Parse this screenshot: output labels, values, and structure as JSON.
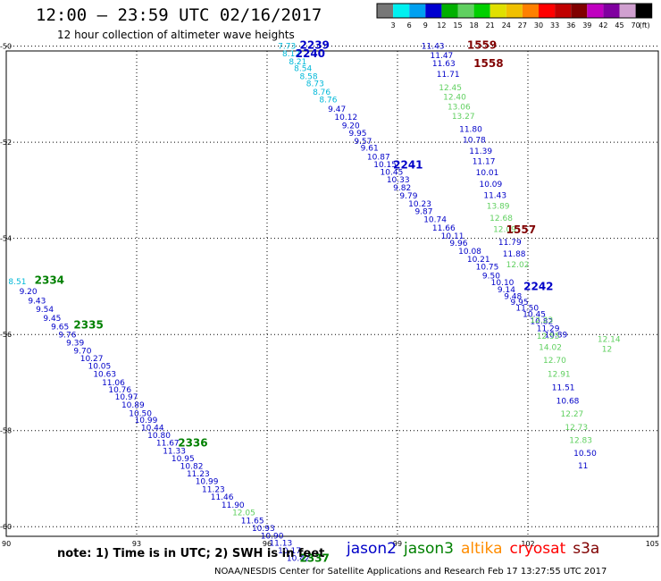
{
  "header": {
    "title": "12:00 – 23:59 UTC 02/16/2017",
    "subtitle": "12 hour collection of altimeter wave heights"
  },
  "colorbar": {
    "colors": [
      "#777777",
      "#00f0f0",
      "#00a0f0",
      "#0000d0",
      "#00b000",
      "#60d060",
      "#00d000",
      "#e0e000",
      "#f0c000",
      "#ff8000",
      "#ff0000",
      "#c00000",
      "#800000",
      "#c000c0",
      "#8000a0",
      "#d0a0d0",
      "#000000"
    ],
    "ticks": [
      "3",
      "6",
      "9",
      "12",
      "15",
      "18",
      "21",
      "24",
      "27",
      "30",
      "33",
      "36",
      "39",
      "42",
      "45",
      "70"
    ],
    "unit": "(ft)"
  },
  "footer": {
    "note": "note: 1) Time is in UTC; 2) SWH is in feet",
    "credit": "NOAA/NESDIS Center for Satellite Applications and Research   Feb 17 13:27:55 UTC 2017",
    "satellites": [
      {
        "name": "jason2",
        "color": "#0000c8"
      },
      {
        "name": "jason3",
        "color": "#008000"
      },
      {
        "name": "altika",
        "color": "#ff8c00"
      },
      {
        "name": "cryosat",
        "color": "#ff0000"
      },
      {
        "name": "s3a",
        "color": "#800000"
      }
    ]
  },
  "chart_data": {
    "type": "scatter",
    "title": "12:00 – 23:59 UTC 02/16/2017",
    "subtitle": "12 hour collection of altimeter wave heights",
    "x_ticks": [
      90,
      93,
      96,
      99,
      102,
      105
    ],
    "y_ticks": [
      -50,
      -52,
      -54,
      -56,
      -58,
      -60
    ],
    "xlim": [
      90,
      105
    ],
    "ylim": [
      -50.1,
      -60.2
    ],
    "grid": true,
    "value_unit": "ft",
    "series": [
      {
        "name": "2239",
        "color": "#0000c8",
        "label_color": "#0000c8",
        "label_pos": [
          96.75,
          -49.98
        ],
        "points": [
          [
            96.25,
            -50.0,
            7.73,
            "#00b8d8"
          ],
          [
            96.35,
            -50.16,
            8.12,
            "#00b8d8"
          ],
          [
            96.5,
            -50.32,
            8.21,
            "#00b8d8"
          ],
          [
            96.62,
            -50.46,
            8.54,
            "#00b8d8"
          ],
          [
            96.75,
            -50.63,
            8.58,
            "#00b8d8"
          ],
          [
            96.9,
            -50.78,
            8.73,
            "#00b8d8"
          ],
          [
            97.05,
            -50.96,
            8.76,
            "#00b8d8"
          ],
          [
            97.2,
            -51.11,
            8.76,
            "#00b8d8"
          ],
          [
            97.4,
            -51.31,
            9.47,
            "#0000c8"
          ],
          [
            97.55,
            -51.48,
            10.12,
            "#0000c8"
          ],
          [
            97.72,
            -51.65,
            9.2,
            "#0000c8"
          ],
          [
            97.88,
            -51.81,
            9.95,
            "#0000c8"
          ],
          [
            98.0,
            -51.98,
            9.57,
            "#0000c8"
          ],
          [
            98.15,
            -52.12,
            9.61,
            "#0000c8"
          ],
          [
            98.3,
            -52.3,
            10.87,
            "#0000c8"
          ],
          [
            98.45,
            -52.46,
            10.15,
            "#0000c8"
          ],
          [
            98.6,
            -52.62,
            10.45,
            "#0000c8"
          ],
          [
            98.75,
            -52.78,
            10.33,
            "#0000c8"
          ],
          [
            98.9,
            -52.95,
            9.82,
            "#0000c8"
          ],
          [
            99.05,
            -53.11,
            9.79,
            "#0000c8"
          ],
          [
            99.25,
            -53.28,
            10.23,
            "#0000c8"
          ],
          [
            99.4,
            -53.44,
            9.87,
            "#0000c8"
          ],
          [
            99.6,
            -53.61,
            10.74,
            "#0000c8"
          ],
          [
            99.8,
            -53.78,
            11.66,
            "#0000c8"
          ],
          [
            100.0,
            -53.95,
            10.11,
            "#0000c8"
          ],
          [
            100.2,
            -54.1,
            9.96,
            "#0000c8"
          ],
          [
            100.4,
            -54.27,
            10.08,
            "#0000c8"
          ],
          [
            100.6,
            -54.43,
            10.21,
            "#0000c8"
          ],
          [
            100.8,
            -54.59,
            10.75,
            "#0000c8"
          ],
          [
            100.95,
            -54.78,
            9.5,
            "#0000c8"
          ],
          [
            101.15,
            -54.92,
            10.1,
            "#0000c8"
          ],
          [
            101.3,
            -55.07,
            9.14,
            "#0000c8"
          ],
          [
            101.45,
            -55.21,
            9.48,
            "#0000c8"
          ],
          [
            101.6,
            -55.33,
            9.95,
            "#0000c8"
          ],
          [
            101.72,
            -55.45,
            11.5,
            "#0000c8"
          ],
          [
            101.88,
            -55.58,
            10.45,
            "#0000c8"
          ],
          [
            102.05,
            -55.73,
            10.82,
            "#0000c8"
          ],
          [
            102.2,
            -55.88,
            11.29,
            "#0000c8"
          ],
          [
            102.38,
            -56.01,
            10.89,
            "#0000c8"
          ]
        ]
      },
      {
        "name": "2240",
        "color": "#0000c8",
        "label_color": "#0000c8",
        "label_pos": [
          96.65,
          -50.16
        ],
        "points": []
      },
      {
        "name": "2241",
        "color": "#0000c8",
        "label_color": "#0000c8",
        "label_pos": [
          98.9,
          -52.47
        ],
        "points": []
      },
      {
        "name": "2242",
        "color": "#0000c8",
        "label_color": "#0000c8",
        "label_pos": [
          101.9,
          -55.0
        ],
        "points": []
      },
      {
        "name": "1559",
        "color": "#0000c8",
        "label_color": "#800000",
        "label_pos": [
          100.6,
          -49.98
        ],
        "points": [
          [
            99.55,
            -50.0,
            11.43,
            "#0000c8"
          ],
          [
            99.75,
            -50.19,
            11.47,
            "#0000c8"
          ],
          [
            99.8,
            -50.36,
            11.63,
            "#0000c8"
          ],
          [
            99.9,
            -50.58,
            11.71,
            "#0000c8"
          ],
          [
            99.95,
            -50.86,
            12.45,
            "#60d060"
          ],
          [
            100.05,
            -51.06,
            12.4,
            "#60d060"
          ],
          [
            100.15,
            -51.26,
            13.06,
            "#60d060"
          ],
          [
            100.25,
            -51.46,
            13.27,
            "#60d060"
          ],
          [
            100.42,
            -51.73,
            11.8,
            "#0000c8"
          ],
          [
            100.5,
            -51.95,
            10.78,
            "#0000c8"
          ],
          [
            100.65,
            -52.18,
            11.39,
            "#0000c8"
          ],
          [
            100.72,
            -52.4,
            11.17,
            "#0000c8"
          ],
          [
            100.8,
            -52.63,
            10.01,
            "#0000c8"
          ],
          [
            100.88,
            -52.87,
            10.09,
            "#0000c8"
          ],
          [
            100.98,
            -53.1,
            11.43,
            "#0000c8"
          ],
          [
            101.05,
            -53.33,
            13.89,
            "#60d060"
          ],
          [
            101.12,
            -53.58,
            12.68,
            "#60d060"
          ],
          [
            101.2,
            -53.81,
            12.09,
            "#60d060"
          ],
          [
            101.32,
            -54.08,
            11.79,
            "#0000c8"
          ],
          [
            101.42,
            -54.32,
            11.88,
            "#0000c8"
          ],
          [
            101.5,
            -54.55,
            12.02,
            "#60d060"
          ]
        ]
      },
      {
        "name": "1558",
        "color": "#0000c8",
        "label_color": "#800000",
        "label_pos": [
          100.75,
          -50.36
        ],
        "points": []
      },
      {
        "name": "1557",
        "color": "#60d060",
        "label_color": "#800000",
        "label_pos": [
          101.5,
          -53.82
        ],
        "points": [
          [
            102.05,
            -55.7,
            12.23,
            "#60d060"
          ],
          [
            102.2,
            -56.03,
            12.55,
            "#60d060"
          ],
          [
            102.25,
            -56.27,
            14.02,
            "#60d060"
          ],
          [
            102.35,
            -56.54,
            12.7,
            "#60d060"
          ],
          [
            102.45,
            -56.82,
            12.91,
            "#60d060"
          ],
          [
            102.55,
            -57.1,
            11.51,
            "#0000c8"
          ],
          [
            102.65,
            -57.38,
            10.68,
            "#0000c8"
          ],
          [
            102.75,
            -57.65,
            12.27,
            "#60d060"
          ],
          [
            102.85,
            -57.93,
            12.73,
            "#60d060"
          ],
          [
            102.95,
            -58.2,
            12.83,
            "#60d060"
          ],
          [
            103.05,
            -58.47,
            10.5,
            "#0000c8"
          ],
          [
            103.15,
            -58.73,
            11,
            "#0000c8"
          ],
          [
            103.6,
            -56.1,
            12.14,
            "#60d060"
          ],
          [
            103.7,
            -56.3,
            12,
            "#60d060"
          ]
        ]
      },
      {
        "name": "2334",
        "color": "#0000c8",
        "label_color": "#008000",
        "label_pos": [
          90.65,
          -54.87
        ],
        "points": [
          [
            90.05,
            -54.9,
            8.51,
            "#00b8d8"
          ],
          [
            90.3,
            -55.1,
            9.2,
            "#0000c8"
          ],
          [
            90.5,
            -55.3,
            9.43,
            "#0000c8"
          ],
          [
            90.68,
            -55.48,
            9.54,
            "#0000c8"
          ],
          [
            90.85,
            -55.66,
            9.45,
            "#0000c8"
          ],
          [
            91.03,
            -55.84,
            9.65,
            "#0000c8"
          ],
          [
            91.2,
            -56.01,
            9.76,
            "#0000c8"
          ],
          [
            91.38,
            -56.17,
            9.39,
            "#0000c8"
          ],
          [
            91.55,
            -56.34,
            9.7,
            "#0000c8"
          ],
          [
            91.7,
            -56.5,
            10.27,
            "#0000c8"
          ],
          [
            91.88,
            -56.66,
            10.05,
            "#0000c8"
          ],
          [
            92.0,
            -56.82,
            10.63,
            "#0000c8"
          ],
          [
            92.2,
            -57.0,
            11.06,
            "#0000c8"
          ],
          [
            92.35,
            -57.15,
            10.76,
            "#0000c8"
          ],
          [
            92.5,
            -57.3,
            10.97,
            "#0000c8"
          ],
          [
            92.65,
            -57.47,
            10.89,
            "#0000c8"
          ],
          [
            92.82,
            -57.64,
            10.5,
            "#0000c8"
          ],
          [
            92.95,
            -57.78,
            10.99,
            "#0000c8"
          ],
          [
            93.1,
            -57.94,
            10.44,
            "#0000c8"
          ],
          [
            93.25,
            -58.1,
            10.8,
            "#0000c8"
          ],
          [
            93.45,
            -58.26,
            11.67,
            "#0000c8"
          ],
          [
            93.6,
            -58.42,
            11.33,
            "#0000c8"
          ],
          [
            93.8,
            -58.58,
            10.95,
            "#0000c8"
          ],
          [
            94.0,
            -58.74,
            10.82,
            "#0000c8"
          ],
          [
            94.15,
            -58.9,
            11.23,
            "#0000c8"
          ],
          [
            94.35,
            -59.06,
            10.99,
            "#0000c8"
          ],
          [
            94.5,
            -59.22,
            11.23,
            "#0000c8"
          ],
          [
            94.7,
            -59.38,
            11.46,
            "#0000c8"
          ],
          [
            94.95,
            -59.55,
            11.9,
            "#0000c8"
          ],
          [
            95.2,
            -59.71,
            12.05,
            "#60d060"
          ],
          [
            95.4,
            -59.87,
            11.65,
            "#0000c8"
          ],
          [
            95.65,
            -60.03,
            10.93,
            "#0000c8"
          ],
          [
            95.85,
            -60.19,
            10.9,
            "#0000c8"
          ],
          [
            96.05,
            -60.34,
            11.13,
            "#0000c8"
          ],
          [
            96.25,
            -60.5,
            10.17,
            "#0000c8"
          ],
          [
            96.45,
            -60.66,
            10.42,
            "#0000c8"
          ]
        ]
      },
      {
        "name": "2335",
        "color": "#0000c8",
        "label_color": "#008000",
        "label_pos": [
          91.55,
          -55.8
        ],
        "points": []
      },
      {
        "name": "2336",
        "color": "#0000c8",
        "label_color": "#008000",
        "label_pos": [
          93.95,
          -58.26
        ],
        "points": []
      },
      {
        "name": "2337",
        "color": "#0000c8",
        "label_color": "#008000",
        "label_pos": [
          96.75,
          -60.66
        ],
        "points": []
      }
    ]
  }
}
